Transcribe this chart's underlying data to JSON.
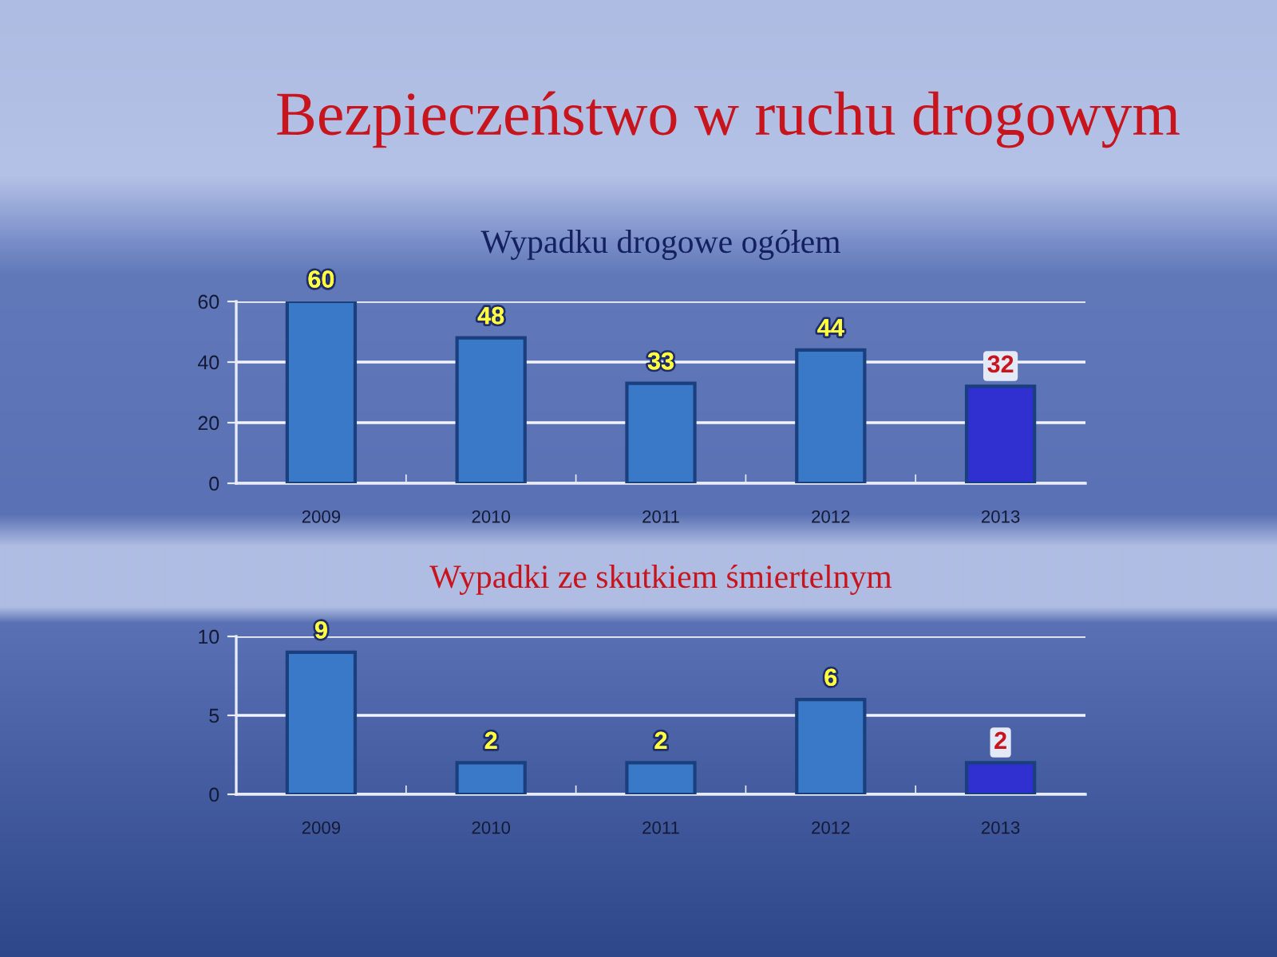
{
  "chart_data": [
    {
      "type": "bar",
      "title": "Bezpieczeństwo w ruchu drogowym",
      "subtitle": "Wypadku drogowe ogółem",
      "categories": [
        "2009",
        "2010",
        "2011",
        "2012",
        "2013"
      ],
      "values": [
        60,
        48,
        33,
        44,
        32
      ],
      "colors": [
        "#3a78c8",
        "#3a78c8",
        "#3a78c8",
        "#3a78c8",
        "#3030d0"
      ],
      "ylim": [
        0,
        60
      ],
      "yticks": [
        0,
        20,
        40,
        60
      ],
      "grid": "y",
      "data_labels": true
    },
    {
      "type": "bar",
      "title": "Wypadki ze skutkiem śmiertelnym",
      "categories": [
        "2009",
        "2010",
        "2011",
        "2012",
        "2013"
      ],
      "values": [
        9,
        2,
        2,
        6,
        2
      ],
      "colors": [
        "#3a78c8",
        "#3a78c8",
        "#3a78c8",
        "#3a78c8",
        "#3030d0"
      ],
      "ylim": [
        0,
        10
      ],
      "yticks": [
        0,
        5,
        10
      ],
      "grid": "y",
      "data_labels": true
    }
  ]
}
